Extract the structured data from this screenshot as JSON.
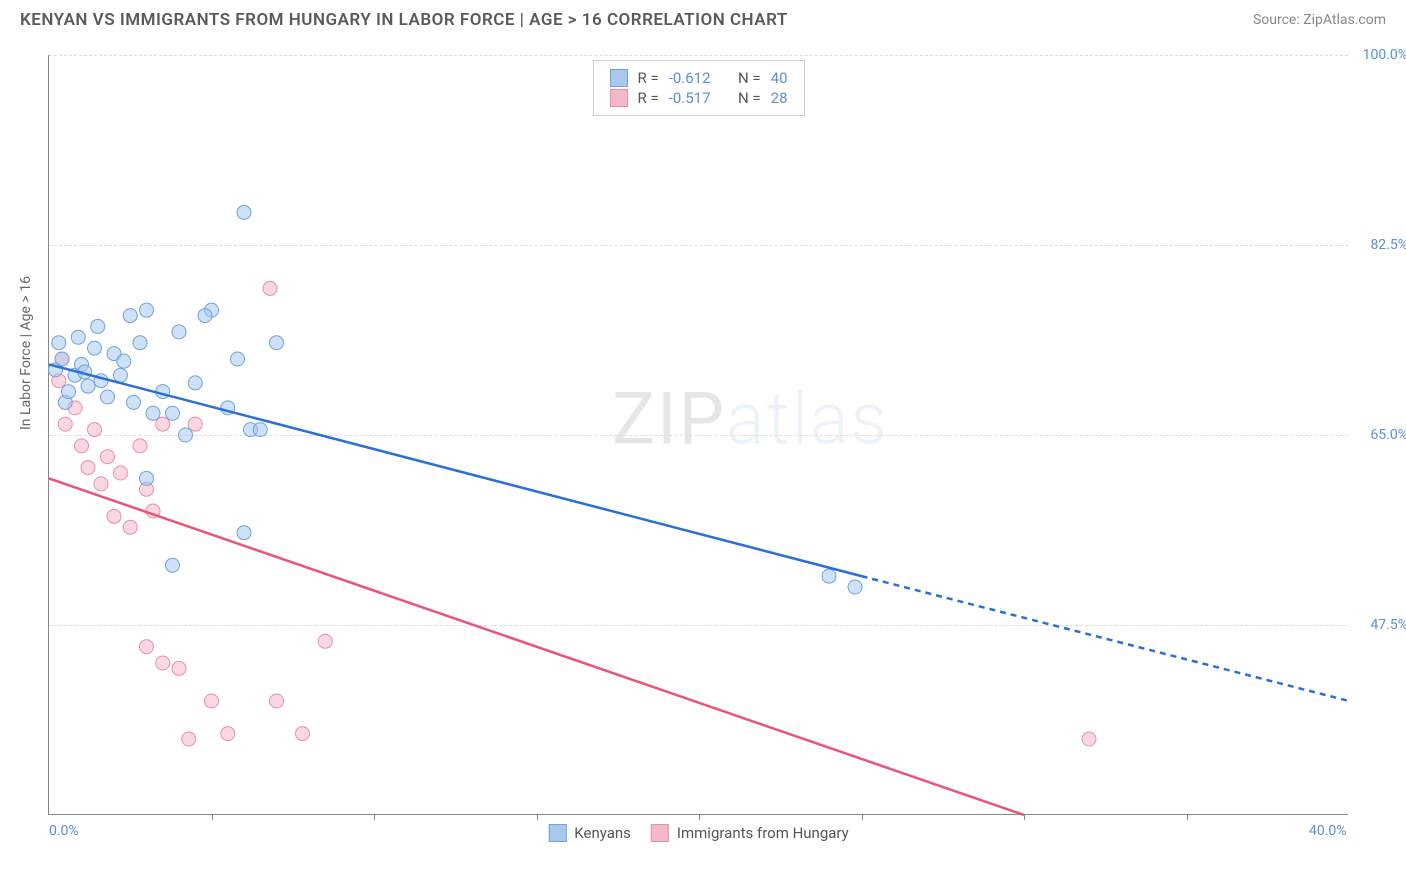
{
  "header": {
    "title": "KENYAN VS IMMIGRANTS FROM HUNGARY IN LABOR FORCE | AGE > 16 CORRELATION CHART",
    "source_prefix": "Source: ",
    "source_link": "ZipAtlas.com"
  },
  "chart": {
    "type": "scatter-with-regression",
    "ylabel": "In Labor Force | Age > 16",
    "xlim": [
      0,
      40
    ],
    "ylim": [
      30,
      100
    ],
    "ytick_values": [
      47.5,
      65.0,
      82.5,
      100.0
    ],
    "ytick_labels": [
      "47.5%",
      "65.0%",
      "82.5%",
      "100.0%"
    ],
    "xtick_values": [
      0,
      40
    ],
    "xtick_labels": [
      "0.0%",
      "40.0%"
    ],
    "xtick_minor": [
      5,
      10,
      15,
      20,
      25,
      30,
      35
    ],
    "background_color": "#ffffff",
    "grid_color": "#dddddd",
    "axis_color": "#888888",
    "tick_label_color": "#5b8fd6",
    "marker_radius": 7,
    "marker_opacity": 0.55,
    "line_width": 2.5,
    "watermark_text_bold": "ZIP",
    "watermark_text_thin": "atlas"
  },
  "stats": {
    "series1": {
      "r_label": "R =",
      "r": "-0.612",
      "n_label": "N =",
      "n": "40"
    },
    "series2": {
      "r_label": "R =",
      "r": "-0.517",
      "n_label": "N =",
      "n": "28"
    }
  },
  "legend": {
    "series1": "Kenyans",
    "series2": "Immigrants from Hungary"
  },
  "series": {
    "kenyans": {
      "color_fill": "#a8c8ec",
      "color_stroke": "#6fa3dd",
      "line_color": "#2a6fd6",
      "points": [
        [
          0.2,
          71
        ],
        [
          0.4,
          72
        ],
        [
          0.8,
          70.5
        ],
        [
          1.0,
          71.5
        ],
        [
          1.2,
          69.5
        ],
        [
          1.4,
          73
        ],
        [
          1.6,
          70
        ],
        [
          0.5,
          68
        ],
        [
          0.9,
          74
        ],
        [
          1.5,
          75
        ],
        [
          2.0,
          72.5
        ],
        [
          2.2,
          70.5
        ],
        [
          2.5,
          76
        ],
        [
          2.8,
          73.5
        ],
        [
          3.0,
          76.5
        ],
        [
          3.2,
          67
        ],
        [
          3.5,
          69
        ],
        [
          3.8,
          67
        ],
        [
          4.0,
          74.5
        ],
        [
          4.2,
          65
        ],
        [
          4.5,
          69.8
        ],
        [
          5.0,
          76.5
        ],
        [
          5.5,
          67.5
        ],
        [
          5.8,
          72
        ],
        [
          6.0,
          85.5
        ],
        [
          6.2,
          65.5
        ],
        [
          6.5,
          65.5
        ],
        [
          7.0,
          73.5
        ],
        [
          3.0,
          61
        ],
        [
          3.8,
          53
        ],
        [
          6.0,
          56
        ],
        [
          1.8,
          68.5
        ],
        [
          2.3,
          71.8
        ],
        [
          24.0,
          52
        ],
        [
          24.8,
          51
        ],
        [
          0.3,
          73.5
        ],
        [
          0.6,
          69
        ],
        [
          1.1,
          70.8
        ],
        [
          4.8,
          76
        ],
        [
          2.6,
          68
        ]
      ],
      "regression": {
        "x1": 0,
        "y1": 71.5,
        "x2": 25,
        "y2": 52,
        "x2_dash": 40,
        "y2_dash": 40.5
      }
    },
    "hungary": {
      "color_fill": "#f5b8c8",
      "color_stroke": "#e88fa8",
      "line_color": "#e8547a",
      "points": [
        [
          0.3,
          70
        ],
        [
          0.5,
          66
        ],
        [
          0.8,
          67.5
        ],
        [
          1.0,
          64
        ],
        [
          1.2,
          62
        ],
        [
          1.4,
          65.5
        ],
        [
          1.6,
          60.5
        ],
        [
          1.8,
          63
        ],
        [
          2.0,
          57.5
        ],
        [
          2.2,
          61.5
        ],
        [
          2.5,
          56.5
        ],
        [
          2.8,
          64
        ],
        [
          3.0,
          60
        ],
        [
          3.2,
          58
        ],
        [
          3.5,
          66
        ],
        [
          3.0,
          45.5
        ],
        [
          3.5,
          44
        ],
        [
          4.0,
          43.5
        ],
        [
          5.0,
          40.5
        ],
        [
          5.5,
          37.5
        ],
        [
          6.8,
          78.5
        ],
        [
          4.5,
          66
        ],
        [
          7.0,
          40.5
        ],
        [
          7.8,
          37.5
        ],
        [
          8.5,
          46
        ],
        [
          4.3,
          37
        ],
        [
          32.0,
          37
        ],
        [
          0.4,
          72
        ]
      ],
      "regression": {
        "x1": 0,
        "y1": 61,
        "x2": 30,
        "y2": 30,
        "x2_dash": 30,
        "y2_dash": 30
      }
    }
  }
}
